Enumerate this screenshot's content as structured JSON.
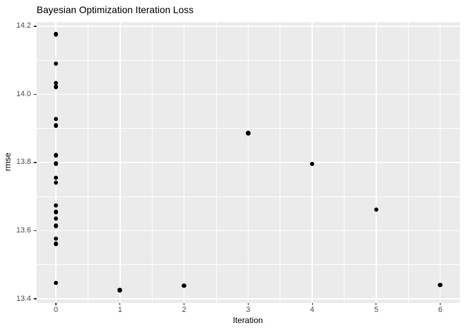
{
  "figure": {
    "title": "Bayesian Optimization Iteration Loss"
  },
  "chart_data": {
    "type": "scatter",
    "title": "Bayesian Optimization Iteration Loss",
    "xlabel": "Iteration",
    "ylabel": "rmse",
    "xlim": [
      -0.307,
      6.3
    ],
    "ylim": [
      13.389,
      14.212
    ],
    "x_major_ticks": [
      0,
      1,
      2,
      3,
      4,
      5,
      6
    ],
    "x_tick_labels": [
      "0",
      "1",
      "2",
      "3",
      "4",
      "5",
      "6"
    ],
    "x_minor_ticks": [
      0.5,
      1.5,
      2.5,
      3.5,
      4.5,
      5.5
    ],
    "y_major_ticks": [
      13.4,
      13.6,
      13.8,
      14.0,
      14.2
    ],
    "y_tick_labels": [
      "13.4",
      "13.6",
      "13.8",
      "14.0",
      "14.2"
    ],
    "y_minor_ticks": [
      13.5,
      13.7,
      13.9,
      14.1
    ],
    "grid": true,
    "legend_position": "none",
    "style": {
      "panel_bg": "#EBEBEB",
      "grid_color": "#FFFFFF",
      "point_color": "#000000",
      "tick_label_color": "#4D4D4D",
      "axis_title_color": "#000000",
      "title_color": "#000000",
      "tick_mark_color": "#333333"
    },
    "points": [
      {
        "x": 0,
        "y": 14.177
      },
      {
        "x": 0,
        "y": 14.09
      },
      {
        "x": 0,
        "y": 14.033
      },
      {
        "x": 0,
        "y": 14.022
      },
      {
        "x": 0,
        "y": 13.928
      },
      {
        "x": 0,
        "y": 13.909
      },
      {
        "x": 0,
        "y": 13.821
      },
      {
        "x": 0,
        "y": 13.797
      },
      {
        "x": 0,
        "y": 13.755
      },
      {
        "x": 0,
        "y": 13.741
      },
      {
        "x": 0,
        "y": 13.674
      },
      {
        "x": 0,
        "y": 13.655
      },
      {
        "x": 0,
        "y": 13.636
      },
      {
        "x": 0,
        "y": 13.614
      },
      {
        "x": 0,
        "y": 13.577
      },
      {
        "x": 0,
        "y": 13.561
      },
      {
        "x": 0,
        "y": 13.447
      },
      {
        "x": 1,
        "y": 13.426
      },
      {
        "x": 2,
        "y": 13.439
      },
      {
        "x": 3,
        "y": 13.886
      },
      {
        "x": 4,
        "y": 13.796
      },
      {
        "x": 5,
        "y": 13.662
      },
      {
        "x": 6,
        "y": 13.441
      }
    ]
  }
}
